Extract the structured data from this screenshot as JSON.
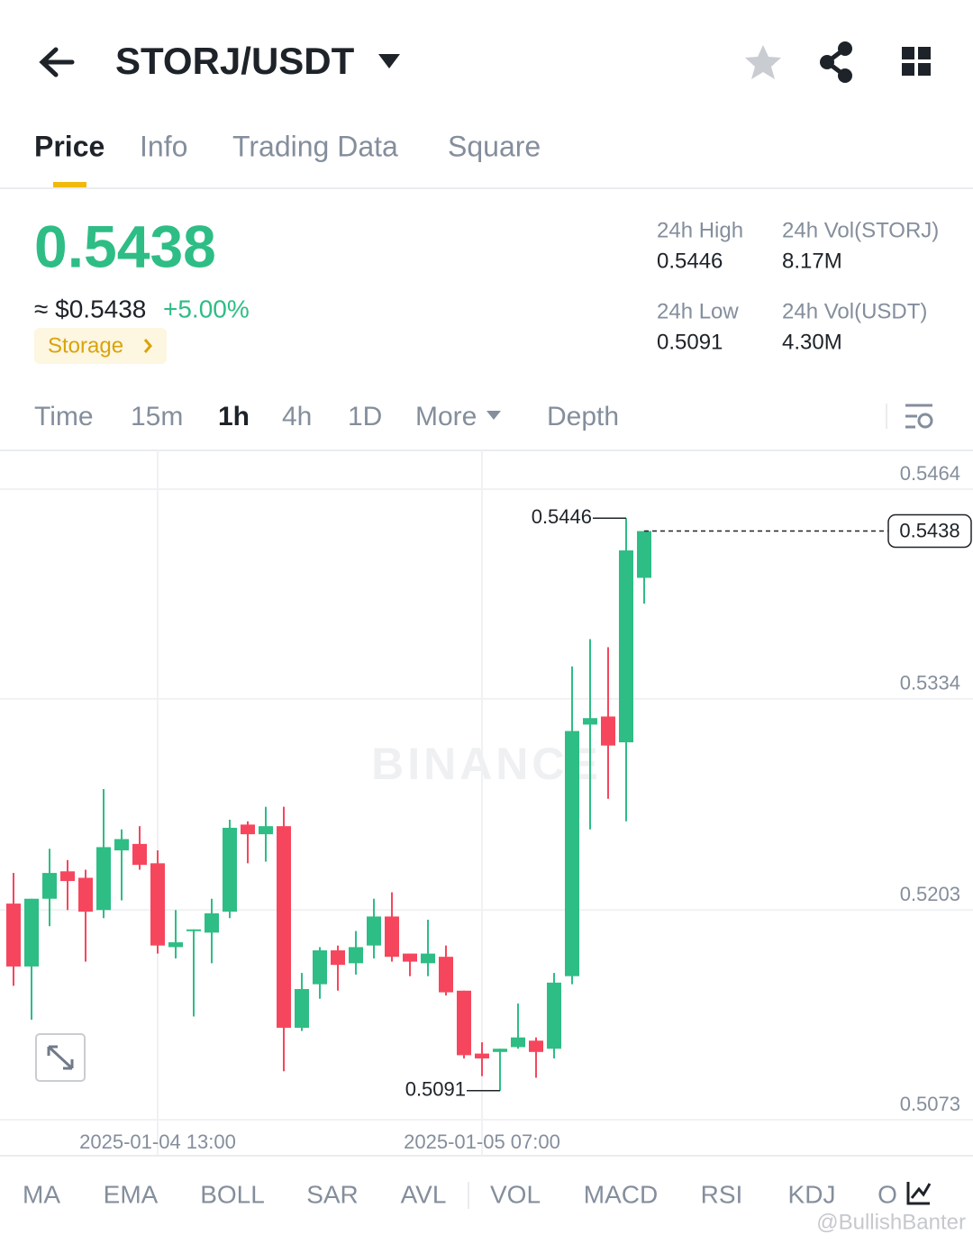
{
  "header": {
    "symbol": "STORJ/USDT"
  },
  "tabs": [
    "Price",
    "Info",
    "Trading Data",
    "Square"
  ],
  "price": {
    "last": "0.5438",
    "approx": "≈ $0.5438",
    "change": "+5.00%",
    "tag": "Storage"
  },
  "stats": [
    {
      "label": "24h High",
      "value": "0.5446"
    },
    {
      "label": "24h Vol(STORJ)",
      "value": "8.17M"
    },
    {
      "label": "24h Low",
      "value": "0.5091"
    },
    {
      "label": "24h Vol(USDT)",
      "value": "4.30M"
    }
  ],
  "intervals": [
    "Time",
    "15m",
    "1h",
    "4h",
    "1D",
    "More",
    "Depth"
  ],
  "chart_data": {
    "type": "candlestick",
    "categories": [
      null,
      null,
      null,
      null,
      null,
      null,
      null,
      null,
      "2025-01-04 13:00",
      null,
      null,
      null,
      null,
      null,
      null,
      null,
      null,
      null,
      null,
      null,
      null,
      null,
      null,
      null,
      null,
      null,
      "2025-01-05 07:00",
      null,
      null,
      null,
      null,
      null,
      null,
      null,
      null,
      null
    ],
    "open": [
      0.5207,
      0.5168,
      0.521,
      0.5227,
      0.5223,
      0.5203,
      0.524,
      0.5244,
      0.5232,
      0.518,
      0.519,
      0.5189,
      0.5202,
      0.5256,
      0.525,
      0.5255,
      0.513,
      0.5157,
      0.5178,
      0.517,
      0.5181,
      0.5199,
      0.5176,
      0.517,
      0.5174,
      0.5153,
      0.5114,
      0.5115,
      0.5118,
      0.5122,
      0.5117,
      0.5162,
      0.5318,
      0.5323,
      0.5307,
      0.5409
    ],
    "high": [
      0.5226,
      0.521,
      0.5241,
      0.5234,
      0.5228,
      0.5278,
      0.5253,
      0.5255,
      0.524,
      0.5203,
      0.5191,
      0.521,
      0.5259,
      0.5258,
      0.5267,
      0.5267,
      0.5164,
      0.518,
      0.5181,
      0.519,
      0.521,
      0.5214,
      0.5176,
      0.5197,
      0.5181,
      0.5153,
      0.5121,
      0.5117,
      0.5145,
      0.5124,
      0.5164,
      0.5354,
      0.5371,
      0.5366,
      0.5446,
      0.5438
    ],
    "low": [
      0.5156,
      0.5135,
      0.5193,
      0.5203,
      0.5171,
      0.5198,
      0.5209,
      0.5228,
      0.5176,
      0.5173,
      0.5137,
      0.517,
      0.5198,
      0.5232,
      0.5233,
      0.5103,
      0.5128,
      0.5148,
      0.5153,
      0.5163,
      0.5173,
      0.5171,
      0.5162,
      0.5162,
      0.515,
      0.5111,
      0.51,
      0.5091,
      0.5117,
      0.5099,
      0.5111,
      0.5157,
      0.5253,
      0.5272,
      0.5258,
      0.5393
    ],
    "close": [
      0.5168,
      0.521,
      0.5226,
      0.5221,
      0.5202,
      0.5242,
      0.5247,
      0.5231,
      0.5181,
      0.5183,
      0.5191,
      0.5201,
      0.5254,
      0.525,
      0.5255,
      0.513,
      0.5154,
      0.5178,
      0.5169,
      0.518,
      0.5199,
      0.5174,
      0.5171,
      0.5176,
      0.5152,
      0.5113,
      0.5111,
      0.5117,
      0.5124,
      0.5115,
      0.5158,
      0.5314,
      0.5322,
      0.5305,
      0.5426,
      0.5438
    ],
    "up_color": "#2ebd85",
    "down_color": "#f6465d",
    "ylim": [
      0.5073,
      0.5464
    ],
    "yticks": [
      0.5464,
      0.5334,
      0.5203,
      0.5073
    ],
    "last_price": 0.5438,
    "high_marker": 0.5446,
    "low_marker": 0.5091,
    "watermark": "BINANCE"
  },
  "indicators": [
    "MA",
    "EMA",
    "BOLL",
    "SAR",
    "AVL",
    "VOL",
    "MACD",
    "RSI",
    "KDJ",
    "O"
  ],
  "watermark": "@BullishBanter"
}
